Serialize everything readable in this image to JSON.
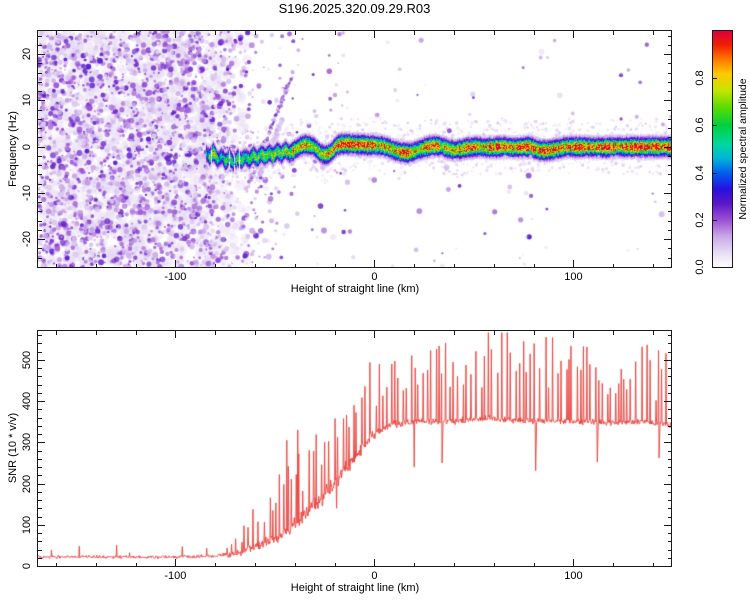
{
  "title": "S196.2025.320.09.29.R03",
  "colors": {
    "axis": "#1a1a1a",
    "snr_line": "#e8413b",
    "background": "#ffffff"
  },
  "chart_data": [
    {
      "type": "heatmap",
      "name": "doppler-spectrogram",
      "xlabel": "Height of straight line (km)",
      "ylabel": "Frequency (Hz)",
      "xlim": [
        -169,
        149
      ],
      "ylim": [
        -26,
        25
      ],
      "xticks": {
        "values": [
          -100,
          0,
          100
        ],
        "labels": [
          "-100",
          "0",
          "100"
        ],
        "minor_step": 20
      },
      "yticks": {
        "values": [
          -20,
          -10,
          0,
          10,
          20
        ],
        "labels": [
          "-20",
          "-10",
          "0",
          "10",
          "20"
        ],
        "minor_step": 2
      },
      "colorbar": {
        "label": "Normalized spectral amplitude",
        "range": [
          0,
          1
        ],
        "tick_values": [
          0,
          0.2,
          0.4,
          0.6,
          0.8
        ],
        "tick_labels": [
          "0.0",
          "0.2",
          "0.4",
          "0.6",
          "0.8"
        ]
      },
      "colormap_stops": [
        [
          0.0,
          "#ffffff"
        ],
        [
          0.06,
          "#e8ddf5"
        ],
        [
          0.13,
          "#c9a8e8"
        ],
        [
          0.2,
          "#9b4fd4"
        ],
        [
          0.27,
          "#5a18c8"
        ],
        [
          0.33,
          "#2810e0"
        ],
        [
          0.4,
          "#0060f0"
        ],
        [
          0.46,
          "#00b4d8"
        ],
        [
          0.52,
          "#00d8a0"
        ],
        [
          0.6,
          "#00d040"
        ],
        [
          0.68,
          "#60dc00"
        ],
        [
          0.75,
          "#c8e400"
        ],
        [
          0.82,
          "#ffc800"
        ],
        [
          0.88,
          "#ff7800"
        ],
        [
          0.94,
          "#f02000"
        ],
        [
          1.0,
          "#dc0040"
        ]
      ],
      "noise_field": {
        "description": "dense purple speckle noise left of signal onset, fading toward center",
        "density_profile": [
          [
            -169,
            1
          ],
          [
            -80,
            1
          ],
          [
            -74,
            0.55
          ],
          [
            -62,
            0.3
          ],
          [
            -50,
            0.12
          ],
          [
            -38,
            0.05
          ],
          [
            -20,
            0.03
          ],
          [
            0,
            0.02
          ],
          [
            149,
            0.015
          ]
        ],
        "intensity_range": [
          0.04,
          0.28
        ]
      },
      "streaks": [
        {
          "from": [
            -63,
            -8
          ],
          "to": [
            -41,
            16
          ],
          "amp": 0.2
        },
        {
          "from": [
            -58,
            -6
          ],
          "to": [
            -46,
            6
          ],
          "amp": 0.12
        }
      ],
      "signal_trace": [
        [
          -85,
          -1.2,
          0.45
        ],
        [
          -83,
          -2.2,
          0.6
        ],
        [
          -81,
          -1,
          0.75
        ],
        [
          -79,
          -2.8,
          0.55
        ],
        [
          -77,
          -1.8,
          0.5
        ],
        [
          -75,
          -3.2,
          0.6
        ],
        [
          -73,
          -2.2,
          0.65
        ],
        [
          -71,
          -3.6,
          0.5
        ],
        [
          -69,
          -2.4,
          0.7
        ],
        [
          -67,
          -3,
          0.6
        ],
        [
          -65,
          -2,
          0.55
        ],
        [
          -63,
          -2.8,
          0.65
        ],
        [
          -61,
          -1.6,
          0.6
        ],
        [
          -59,
          -2.6,
          0.7
        ],
        [
          -57,
          -1.4,
          0.65
        ],
        [
          -55,
          -2.2,
          0.75
        ],
        [
          -53,
          -1.2,
          0.6
        ],
        [
          -51,
          -2,
          0.7
        ],
        [
          -49,
          -0.8,
          0.65
        ],
        [
          -47,
          -1.6,
          0.7
        ],
        [
          -45,
          -0.6,
          0.75
        ],
        [
          -43,
          -1.4,
          0.7
        ],
        [
          -41,
          -0.8,
          0.8
        ],
        [
          -39,
          -0.2,
          0.75
        ],
        [
          -37,
          0.3,
          0.8
        ],
        [
          -35,
          0.5,
          0.85
        ],
        [
          -33,
          0.4,
          0.8
        ],
        [
          -31,
          0.2,
          0.75
        ],
        [
          -29,
          -0.6,
          0.7
        ],
        [
          -27,
          -1.4,
          0.75
        ],
        [
          -25,
          -1.8,
          0.8
        ],
        [
          -23,
          -1.5,
          0.85
        ],
        [
          -21,
          -0.6,
          0.8
        ],
        [
          -19,
          0.4,
          0.9
        ],
        [
          -17,
          0.6,
          1
        ],
        [
          -14,
          0.7,
          0.95
        ],
        [
          -11,
          0.6,
          0.9
        ],
        [
          -8,
          0.5,
          1
        ],
        [
          -5,
          0.5,
          0.95
        ],
        [
          -2,
          0.4,
          0.9
        ],
        [
          1,
          0.4,
          0.85
        ],
        [
          4,
          0.2,
          0.9
        ],
        [
          7,
          -0.2,
          0.8
        ],
        [
          10,
          -0.7,
          0.85
        ],
        [
          13,
          -1.1,
          0.9
        ],
        [
          16,
          -1.3,
          0.95
        ],
        [
          19,
          -1.1,
          0.85
        ],
        [
          22,
          -0.6,
          0.8
        ],
        [
          25,
          -0.1,
          0.9
        ],
        [
          28,
          0.2,
          0.95
        ],
        [
          31,
          0.3,
          0.9
        ],
        [
          34,
          0.1,
          0.8
        ],
        [
          37,
          -0.4,
          0.75
        ],
        [
          40,
          -0.7,
          0.8
        ],
        [
          43,
          -0.5,
          0.9
        ],
        [
          46,
          -0.2,
          1
        ],
        [
          49,
          0,
          0.95
        ],
        [
          52,
          0.1,
          0.85
        ],
        [
          55,
          0,
          0.8
        ],
        [
          58,
          -0.1,
          0.9
        ],
        [
          61,
          0,
          1
        ],
        [
          64,
          0.1,
          0.95
        ],
        [
          67,
          0,
          0.85
        ],
        [
          70,
          -0.1,
          0.8
        ],
        [
          74,
          0,
          0.9
        ],
        [
          78,
          0.1,
          1
        ],
        [
          82,
          -0.6,
          0.95
        ],
        [
          86,
          -0.8,
          1
        ],
        [
          90,
          -0.5,
          0.95
        ],
        [
          94,
          -0.1,
          0.85
        ],
        [
          98,
          0.1,
          0.9
        ],
        [
          102,
          0,
          1
        ],
        [
          106,
          0.1,
          0.9
        ],
        [
          110,
          0,
          0.85
        ],
        [
          114,
          -0.1,
          0.95
        ],
        [
          118,
          0,
          1
        ],
        [
          122,
          0.1,
          0.9
        ],
        [
          126,
          0,
          0.95
        ],
        [
          130,
          0.1,
          1
        ],
        [
          134,
          0,
          0.95
        ],
        [
          138,
          0.1,
          0.9
        ],
        [
          142,
          0,
          1
        ],
        [
          146,
          0.1,
          0.95
        ],
        [
          149,
          0,
          0.9
        ]
      ]
    },
    {
      "type": "line",
      "name": "snr-profile",
      "xlabel": "Height of straight line (km)",
      "ylabel": "SNR (10 * v/v)",
      "xlim": [
        -169,
        149
      ],
      "ylim": [
        0,
        570
      ],
      "xticks": {
        "values": [
          -100,
          0,
          100
        ],
        "labels": [
          "-100",
          "0",
          "100"
        ],
        "minor_step": 20
      },
      "yticks": {
        "values": [
          0,
          100,
          200,
          300,
          400,
          500
        ],
        "labels": [
          "0",
          "100",
          "200",
          "300",
          "400",
          "500"
        ],
        "minor_step": 20
      },
      "line_color": "#e8413b",
      "mean_profile": [
        [
          -169,
          22
        ],
        [
          -100,
          22
        ],
        [
          -80,
          24
        ],
        [
          -72,
          28
        ],
        [
          -66,
          36
        ],
        [
          -60,
          48
        ],
        [
          -55,
          58
        ],
        [
          -50,
          66
        ],
        [
          -46,
          78
        ],
        [
          -42,
          95
        ],
        [
          -38,
          110
        ],
        [
          -34,
          130
        ],
        [
          -30,
          152
        ],
        [
          -26,
          168
        ],
        [
          -22,
          190
        ],
        [
          -18,
          212
        ],
        [
          -14,
          238
        ],
        [
          -10,
          262
        ],
        [
          -6,
          288
        ],
        [
          -2,
          312
        ],
        [
          2,
          326
        ],
        [
          6,
          336
        ],
        [
          10,
          344
        ],
        [
          20,
          350
        ],
        [
          40,
          352
        ],
        [
          60,
          356
        ],
        [
          80,
          352
        ],
        [
          100,
          350
        ],
        [
          120,
          348
        ],
        [
          135,
          350
        ],
        [
          149,
          342
        ]
      ],
      "noise_profile": [
        [
          -169,
          6
        ],
        [
          -80,
          7
        ],
        [
          -70,
          12
        ],
        [
          -60,
          18
        ],
        [
          -50,
          24
        ],
        [
          -40,
          30
        ],
        [
          -30,
          34
        ],
        [
          -20,
          34
        ],
        [
          -10,
          28
        ],
        [
          0,
          20
        ],
        [
          10,
          15
        ],
        [
          30,
          13
        ],
        [
          149,
          13
        ]
      ],
      "spike_profile": [
        [
          -169,
          0
        ],
        [
          -76,
          0
        ],
        [
          -70,
          40
        ],
        [
          -60,
          90
        ],
        [
          -50,
          130
        ],
        [
          -44,
          160
        ],
        [
          -38,
          170
        ],
        [
          -30,
          150
        ],
        [
          -20,
          150
        ],
        [
          -10,
          160
        ],
        [
          0,
          175
        ],
        [
          10,
          190
        ],
        [
          30,
          205
        ],
        [
          60,
          205
        ],
        [
          100,
          190
        ],
        [
          130,
          175
        ],
        [
          149,
          160
        ]
      ],
      "tall_spikes": [
        [
          -44,
          305
        ],
        [
          -38.5,
          330
        ]
      ],
      "dips": [
        [
          -19,
          140
        ],
        [
          20,
          240
        ],
        [
          34,
          250
        ],
        [
          81,
          231
        ],
        [
          112,
          252
        ],
        [
          143,
          262
        ]
      ]
    }
  ]
}
